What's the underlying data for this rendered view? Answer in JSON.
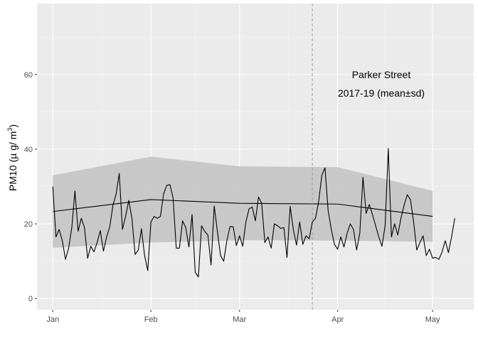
{
  "chart_data": {
    "type": "line",
    "ylabel": "PM10 (µ g/ m³)",
    "ylabel_parts": {
      "main": "PM10 (µ g/ m",
      "sup": "3",
      "close": ")"
    },
    "xlim": [
      "2018-12-27",
      "2019-05-14"
    ],
    "ylim": [
      -3,
      79
    ],
    "x_ticks": [
      {
        "date": "2019-01-01",
        "label": "Jan"
      },
      {
        "date": "2019-02-01",
        "label": "Feb"
      },
      {
        "date": "2019-03-01",
        "label": "Mar"
      },
      {
        "date": "2019-04-01",
        "label": "Apr"
      },
      {
        "date": "2019-05-01",
        "label": "May"
      }
    ],
    "y_ticks": [
      0,
      20,
      40,
      60
    ],
    "annotation_lines": [
      "Parker Street",
      "2017-19 (mean±sd)"
    ],
    "vline_date": "2019-03-24",
    "grid": true,
    "colors": {
      "panel": "#ebebeb",
      "grid_major": "#ffffff",
      "ribbon": "#c6c6c6",
      "line": "#000000",
      "vline": "#9a9a9a",
      "tick_text": "#4d4d4d"
    },
    "climatology": [
      {
        "date": "2019-01-01",
        "mean": 23.3,
        "lower": 13.6,
        "upper": 33.0
      },
      {
        "date": "2019-02-01",
        "mean": 26.5,
        "lower": 15.0,
        "upper": 38.0
      },
      {
        "date": "2019-03-01",
        "mean": 25.5,
        "lower": 15.6,
        "upper": 35.4
      },
      {
        "date": "2019-04-01",
        "mean": 25.3,
        "lower": 15.5,
        "upper": 35.2
      },
      {
        "date": "2019-05-01",
        "mean": 22.0,
        "lower": 15.2,
        "upper": 28.8
      }
    ],
    "series": [
      {
        "start_date": "2019-01-01",
        "values": [
          30.0,
          16.5,
          18.5,
          15.5,
          10.5,
          13.5,
          19.0,
          28.8,
          18.0,
          21.5,
          19.0,
          10.8,
          14.0,
          12.5,
          15.0,
          18.2,
          12.7,
          16.5,
          19.2,
          25.0,
          28.0,
          33.5,
          18.5,
          22.0,
          26.3,
          21.5,
          11.8,
          13.0,
          18.7,
          11.5,
          7.5,
          20.5,
          22.0,
          21.5,
          22.0,
          28.0,
          30.3,
          30.5,
          27.0,
          13.5,
          13.5,
          20.8,
          19.0,
          13.8,
          22.5,
          7.0,
          5.8,
          19.5,
          18.0,
          17.0,
          9.0,
          24.8,
          18.0,
          11.5,
          10.0,
          15.5,
          19.3,
          19.2,
          14.2,
          16.8,
          14.0,
          20.5,
          24.0,
          24.5,
          20.8,
          27.2,
          25.5,
          15.0,
          16.5,
          13.5,
          20.0,
          19.5,
          18.8,
          19.0,
          11.0,
          24.7,
          18.5,
          14.3,
          20.5,
          14.5,
          16.8,
          16.0,
          20.5,
          21.5,
          26.0,
          33.0,
          35.0,
          23.5,
          18.5,
          14.5,
          13.2,
          16.5,
          13.8,
          17.5,
          20.0,
          18.5,
          13.0,
          17.5,
          32.5,
          22.8,
          25.2,
          22.5,
          19.5,
          16.5,
          14.0,
          19.5,
          40.2,
          16.5,
          20.0,
          17.0,
          21.5,
          25.0,
          27.8,
          26.5,
          20.5,
          13.0,
          15.0,
          16.8,
          11.5,
          13.2,
          10.8,
          11.0,
          10.5,
          12.5,
          15.5,
          12.3,
          16.5,
          21.5
        ]
      }
    ]
  }
}
